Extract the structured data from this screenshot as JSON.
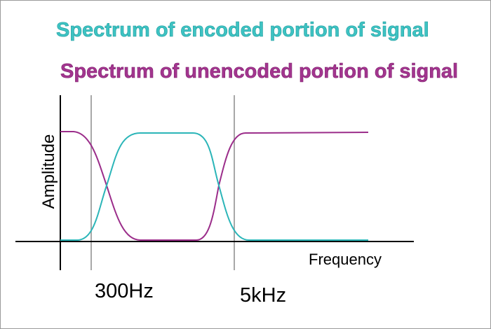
{
  "titles": {
    "encoded": "Spectrum of encoded portion of signal",
    "unencoded": "Spectrum of unencoded portion of signal"
  },
  "axes": {
    "y_label": "Amplitude",
    "x_label": "Frequency"
  },
  "markers": [
    "300Hz",
    "5kHz"
  ]
}
